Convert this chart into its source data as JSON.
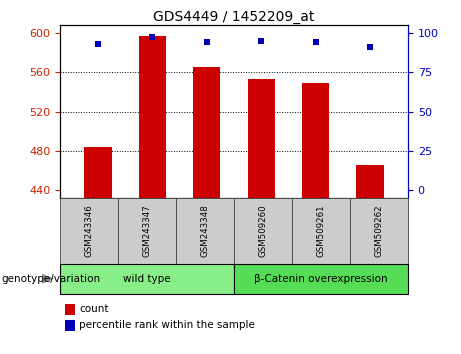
{
  "title": "GDS4449 / 1452209_at",
  "samples": [
    "GSM243346",
    "GSM243347",
    "GSM243348",
    "GSM509260",
    "GSM509261",
    "GSM509262"
  ],
  "count_values": [
    484,
    597,
    565,
    553,
    549,
    466
  ],
  "percentile_values": [
    93,
    97,
    94,
    95,
    94,
    91
  ],
  "ymin": 432,
  "ymax": 608,
  "yticks": [
    440,
    480,
    520,
    560,
    600
  ],
  "y2ticks": [
    0,
    25,
    50,
    75,
    100
  ],
  "bar_color": "#cc0000",
  "dot_color": "#0000bb",
  "bg_color": "#ffffff",
  "plot_bg": "#ffffff",
  "groups": [
    {
      "label": "wild type",
      "samples": [
        0,
        1,
        2
      ],
      "color": "#88ee88"
    },
    {
      "label": "β-Catenin overexpression",
      "samples": [
        3,
        4,
        5
      ],
      "color": "#55dd55"
    }
  ],
  "group_header": "genotype/variation",
  "legend_count": "count",
  "legend_percentile": "percentile rank within the sample",
  "bar_width": 0.5,
  "tick_color_left": "#cc2200",
  "tick_color_right": "#0000bb",
  "sample_box_color": "#cccccc",
  "sample_box_edge": "#444444"
}
